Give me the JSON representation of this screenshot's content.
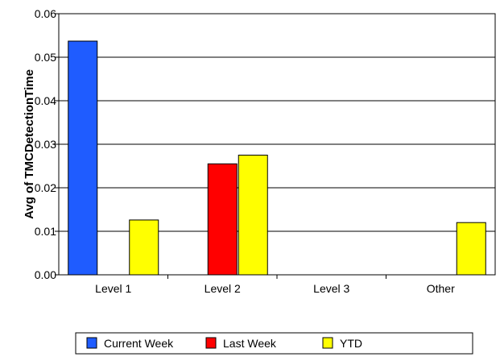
{
  "chart_data": {
    "type": "bar",
    "title": "",
    "xlabel": "",
    "ylabel": "Avg of TMCDetectionTime",
    "categories": [
      "Level 1",
      "Level 2",
      "Level 3",
      "Other"
    ],
    "ylim": [
      0,
      0.06
    ],
    "yticks": [
      "0.00",
      "0.01",
      "0.02",
      "0.03",
      "0.04",
      "0.05",
      "0.06"
    ],
    "grid": true,
    "legend_position": "bottom",
    "series": [
      {
        "name": "Current Week",
        "color": "#1f5cff",
        "values": [
          0.0537,
          0,
          0,
          0
        ]
      },
      {
        "name": "Last Week",
        "color": "#ff0000",
        "values": [
          0,
          0.0255,
          0,
          0
        ]
      },
      {
        "name": "YTD",
        "color": "#ffff00",
        "values": [
          0.0126,
          0.0275,
          0,
          0.012
        ]
      }
    ]
  }
}
